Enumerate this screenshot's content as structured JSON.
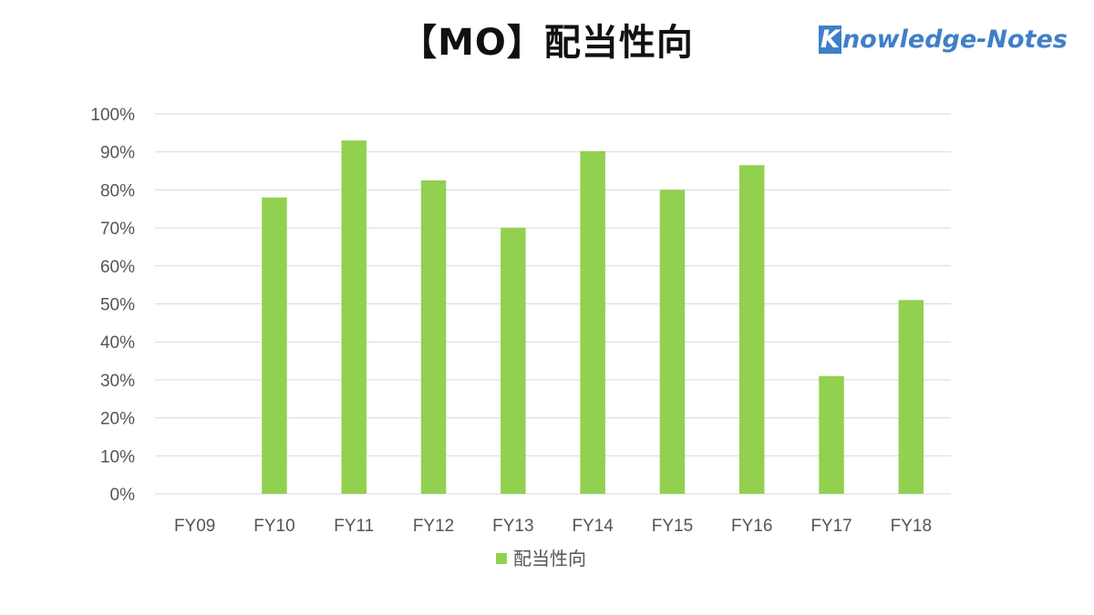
{
  "chart_data": {
    "type": "bar",
    "title": "【MO】配当性向",
    "categories": [
      "FY09",
      "FY10",
      "FY11",
      "FY12",
      "FY13",
      "FY14",
      "FY15",
      "FY16",
      "FY17",
      "FY18"
    ],
    "series": [
      {
        "name": "配当性向",
        "values": [
          0,
          78,
          93,
          82.5,
          70,
          90.2,
          80,
          86.5,
          31,
          51
        ],
        "color": "#92d050"
      }
    ],
    "y_unit": "%",
    "ylim": [
      0,
      100
    ],
    "y_ticks": [
      0,
      10,
      20,
      30,
      40,
      50,
      60,
      70,
      80,
      90,
      100
    ],
    "y_tick_labels": [
      "0%",
      "10%",
      "20%",
      "30%",
      "40%",
      "50%",
      "60%",
      "70%",
      "80%",
      "90%",
      "100%"
    ],
    "grid": true,
    "legend_position": "bottom"
  },
  "watermark": {
    "first": "K",
    "rest": "nowledge-Notes",
    "color": "#3f7fc8"
  }
}
